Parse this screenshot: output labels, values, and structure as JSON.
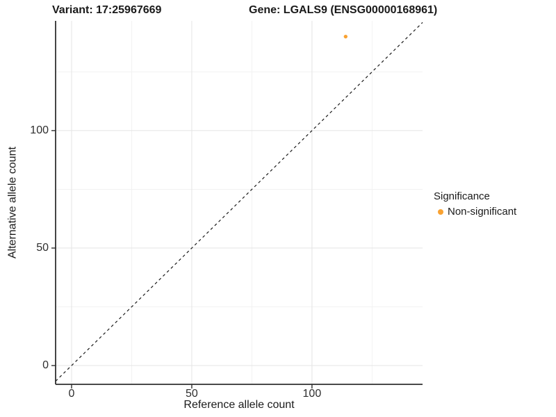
{
  "titles": {
    "variant": "Variant: 17:25967669",
    "gene": "Gene: LGALS9 (ENSG00000168961)"
  },
  "axes": {
    "x_label": "Reference allele count",
    "y_label": "Alternative allele count"
  },
  "legend": {
    "title": "Significance",
    "items": [
      {
        "label": "Non-significant",
        "color": "#F9A232"
      }
    ]
  },
  "chart_data": {
    "type": "scatter",
    "title": "Variant: 17:25967669   Gene: LGALS9 (ENSG00000168961)",
    "xlabel": "Reference allele count",
    "ylabel": "Alternative allele count",
    "xlim": [
      -6.65,
      146.0
    ],
    "ylim": [
      -8.0,
      146.7
    ],
    "x_ticks": [
      0,
      50,
      100
    ],
    "y_ticks": [
      0,
      50,
      100
    ],
    "x_minor_gridlines": [
      25,
      75,
      125
    ],
    "y_minor_gridlines": [
      25,
      75,
      125
    ],
    "grid": true,
    "legend_position": "right",
    "series": [
      {
        "name": "Non-significant",
        "color": "#F9A232",
        "points": [
          {
            "x": 114,
            "y": 140
          }
        ]
      }
    ],
    "reference_line": {
      "type": "identity y=x",
      "style": "dashed",
      "color": "#1a1a1a"
    }
  }
}
